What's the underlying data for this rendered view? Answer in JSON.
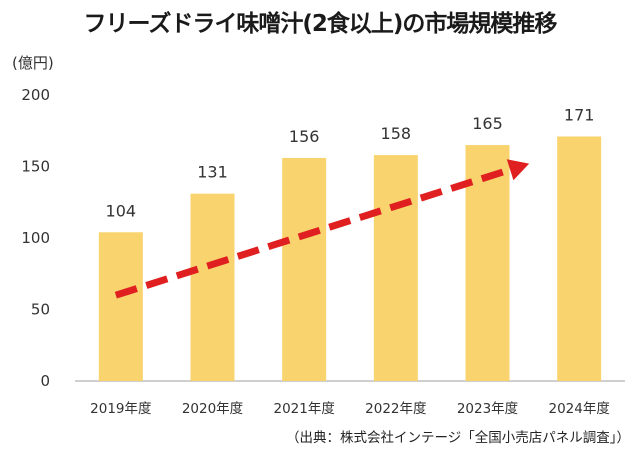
{
  "chart_data": {
    "type": "bar",
    "title": "フリーズドライ味噌汁(2食以上)の市場規模推移",
    "ylabel": "(億円)",
    "xlabel": "",
    "categories": [
      "2019年度",
      "2020年度",
      "2021年度",
      "2022年度",
      "2023年度",
      "2024年度"
    ],
    "values": [
      104,
      131,
      156,
      158,
      165,
      171
    ],
    "ylim": [
      0,
      200
    ],
    "yticks": [
      0,
      50,
      100,
      150,
      200
    ],
    "grid": false,
    "legend": "none",
    "annotation": "trend arrow",
    "source": "（出典：株式会社インテージ「全国小売店パネル調査」）"
  },
  "colors": {
    "bar": "#F9D36E",
    "arrow": "#E02020",
    "axis": "#BFBFBF"
  }
}
